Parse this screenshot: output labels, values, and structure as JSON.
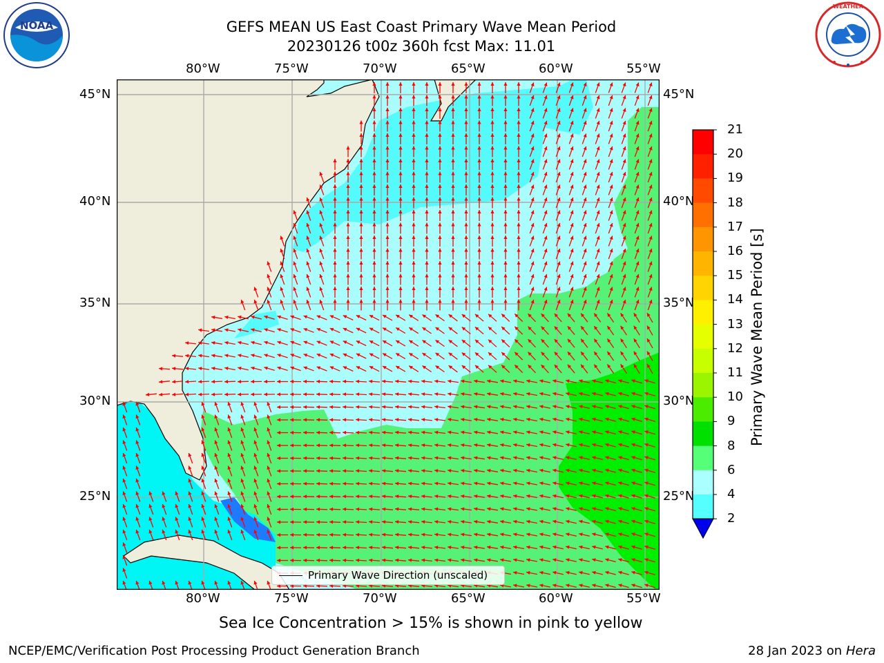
{
  "title_line1": "GEFS MEAN US East Coast Primary Wave Mean Period",
  "title_line2": "20230126 t00z 360h fcst   Max: 11.01",
  "lon_labels": [
    "80°W",
    "75°W",
    "70°W",
    "65°W",
    "60°W",
    "55°W"
  ],
  "lat_labels": [
    "45°N",
    "40°N",
    "35°N",
    "30°N",
    "25°N"
  ],
  "colorbar": {
    "label": "Primary Wave Mean Period [s]",
    "ticks": [
      "21",
      "20",
      "19",
      "18",
      "17",
      "16",
      "15",
      "14",
      "13",
      "12",
      "11",
      "10",
      "9",
      "8",
      "6",
      "4",
      "2"
    ],
    "colors": [
      "#ff0000",
      "#ff2000",
      "#ff4a00",
      "#ff7000",
      "#ff9500",
      "#ffb400",
      "#ffd400",
      "#fff000",
      "#e6ff00",
      "#c8ff00",
      "#9cf500",
      "#4cec00",
      "#00e000",
      "#55ff77",
      "#aaffff",
      "#55ffff",
      "#00ffff",
      "#00ccff",
      "#0077ff",
      "#0000ee"
    ]
  },
  "legend": {
    "label": "Primary Wave Direction (unscaled)"
  },
  "caption": "Sea Ice Concentration > 15% is shown in pink to yellow",
  "footer_left": "NCEP/EMC/Verification Post Processing Product Generation Branch",
  "footer_right_date": "28 Jan 2023 on ",
  "footer_right_host": "Hera",
  "logos": {
    "noaa": "NOAA",
    "nws": "NATIONAL WEATHER SERVICE"
  },
  "map_colors": {
    "land": "#efeedc",
    "green_dark": "#00ee00",
    "green": "#55f277",
    "light_cyan": "#aafdfd",
    "cyan": "#55fafa",
    "cyan_bright": "#00f5f5",
    "blue": "#1e7bff",
    "arrow": "#ff0000",
    "grid": "#aaaaaa"
  }
}
